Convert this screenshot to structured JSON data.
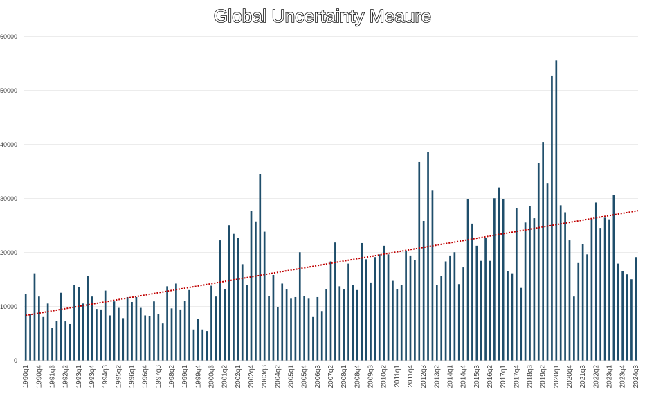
{
  "chart_data": {
    "type": "bar",
    "title": "Global Uncertainty Meaure",
    "xlabel": "",
    "ylabel": "",
    "ylim": [
      0,
      60000
    ],
    "y_ticks": [
      0,
      10000,
      20000,
      30000,
      40000,
      50000,
      60000
    ],
    "grid": true,
    "legend": "none",
    "trendline": {
      "type": "linear",
      "start_value": 8400,
      "end_value": 27800,
      "color": "#c00000",
      "style": "dotted"
    },
    "bar_color": "#1f4e6b",
    "categories": [
      "1990q1",
      "1990q2",
      "1990q3",
      "1990q4",
      "1991q1",
      "1991q2",
      "1991q3",
      "1991q4",
      "1992q1",
      "1992q2",
      "1992q3",
      "1992q4",
      "1993q1",
      "1993q2",
      "1993q3",
      "1993q4",
      "1994q1",
      "1994q2",
      "1994q3",
      "1994q4",
      "1995q1",
      "1995q2",
      "1995q3",
      "1995q4",
      "1996q1",
      "1996q2",
      "1996q3",
      "1996q4",
      "1997q1",
      "1997q2",
      "1997q3",
      "1997q4",
      "1998q1",
      "1998q2",
      "1998q3",
      "1998q4",
      "1999q1",
      "1999q2",
      "1999q3",
      "1999q4",
      "2000q1",
      "2000q2",
      "2000q3",
      "2000q4",
      "2001q1",
      "2001q2",
      "2001q3",
      "2001q4",
      "2002q1",
      "2002q2",
      "2002q3",
      "2002q4",
      "2003q1",
      "2003q2",
      "2003q3",
      "2003q4",
      "2004q1",
      "2004q2",
      "2004q3",
      "2004q4",
      "2005q1",
      "2005q2",
      "2005q3",
      "2005q4",
      "2006q1",
      "2006q2",
      "2006q3",
      "2006q4",
      "2007q1",
      "2007q2",
      "2007q3",
      "2007q4",
      "2008q1",
      "2008q2",
      "2008q3",
      "2008q4",
      "2009q1",
      "2009q2",
      "2009q3",
      "2009q4",
      "2010q1",
      "2010q2",
      "2010q3",
      "2010q4",
      "2011q1",
      "2011q2",
      "2011q3",
      "2011q4",
      "2012q1",
      "2012q2",
      "2012q3",
      "2012q4",
      "2013q1",
      "2013q2",
      "2013q3",
      "2013q4",
      "2014q1",
      "2014q2",
      "2014q3",
      "2014q4",
      "2015q1",
      "2015q2",
      "2015q3",
      "2015q4",
      "2016q1",
      "2016q2",
      "2016q3",
      "2016q4",
      "2017q1",
      "2017q2",
      "2017q3",
      "2017q4",
      "2018q1",
      "2018q2",
      "2018q3",
      "2018q4",
      "2019q1",
      "2019q2",
      "2019q3",
      "2019q4",
      "2020q1",
      "2020q2",
      "2020q3",
      "2020q4",
      "2021q1",
      "2021q2",
      "2021q3",
      "2021q4",
      "2022q1",
      "2022q2",
      "2022q3",
      "2022q4",
      "2023q1",
      "2023q2",
      "2023q3",
      "2023q4",
      "2024q1",
      "2024q2",
      "2024q3"
    ],
    "values": [
      12400,
      8600,
      16200,
      11900,
      8100,
      10600,
      6100,
      7400,
      12600,
      7300,
      6800,
      14000,
      13700,
      10600,
      15700,
      11900,
      9600,
      9500,
      13000,
      8400,
      11000,
      9800,
      7900,
      11800,
      10900,
      11800,
      9800,
      8400,
      8300,
      11000,
      8700,
      6900,
      13800,
      9700,
      14300,
      9500,
      11100,
      13100,
      5800,
      7800,
      5800,
      5500,
      13900,
      11900,
      22300,
      13200,
      25100,
      23500,
      22700,
      17900,
      14000,
      27800,
      25800,
      34500,
      23900,
      12000,
      15900,
      9900,
      14300,
      13200,
      11500,
      11800,
      20100,
      12000,
      11500,
      8100,
      11800,
      9200,
      13300,
      18400,
      21900,
      13800,
      13200,
      18000,
      14100,
      13100,
      21800,
      18800,
      14500,
      19200,
      19700,
      21300,
      19700,
      14800,
      13300,
      14100,
      20400,
      19500,
      18600,
      36800,
      25900,
      38700,
      31500,
      14000,
      15700,
      18400,
      19500,
      20100,
      14200,
      17300,
      29900,
      25400,
      21300,
      18500,
      22700,
      18500,
      30100,
      32100,
      29900,
      16600,
      16200,
      28300,
      13500,
      25600,
      28700,
      26400,
      36600,
      40500,
      32800,
      52700,
      55600,
      28800,
      27500,
      22300,
      11900,
      18100,
      21600,
      19700,
      26300,
      29300,
      24600,
      26500,
      26200,
      30700,
      18000,
      16600,
      16000,
      15100,
      19200
    ],
    "x_tick_labels": [
      "1990q1",
      "1990q4",
      "1991q3",
      "1992q2",
      "1993q1",
      "1993q4",
      "1994q3",
      "1995q2",
      "1996q1",
      "1996q4",
      "1997q3",
      "1998q2",
      "1999q1",
      "1999q4",
      "2000q3",
      "2001q2",
      "2002q1",
      "2002q4",
      "2003q3",
      "2004q2",
      "2005q1",
      "2005q4",
      "2006q3",
      "2007q2",
      "2008q1",
      "2008q4",
      "2009q3",
      "2010q2",
      "2011q1",
      "2011q4",
      "2012q3",
      "2013q2",
      "2014q1",
      "2014q4",
      "2015q3",
      "2016q2",
      "2017q1",
      "2017q4",
      "2018q3",
      "2019q2",
      "2020q1",
      "2020q4",
      "2021q3",
      "2022q2",
      "2023q1",
      "2023q4",
      "2024q3"
    ]
  }
}
